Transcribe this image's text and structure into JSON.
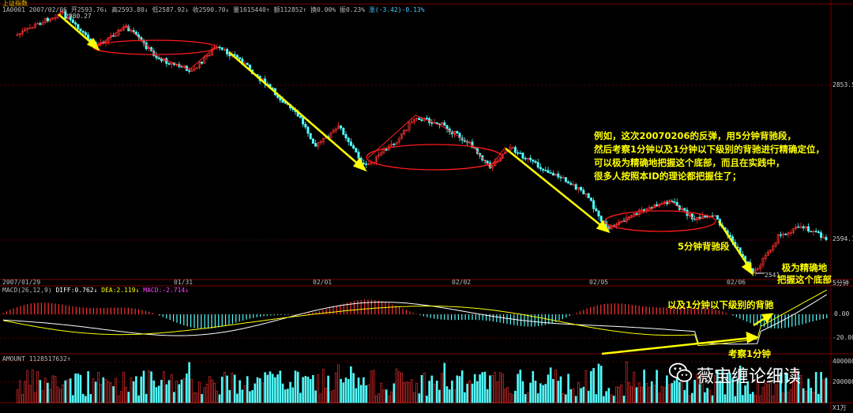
{
  "window_title": "上证指数",
  "main_header": {
    "code_date": "1A0001 2007/02/06",
    "open": "开2593.76↓",
    "high": "高2593.80↓",
    "low": "低2587.92↓",
    "close": "收2590.70↓",
    "volume": "量1615440↑",
    "amount": "额112852↑",
    "turnover": "换0.00%",
    "amplitude": "振0.23%",
    "change": "涨(-3.42)-0.13%"
  },
  "macd_header": {
    "name": "MACD(26,12,9)",
    "diff": "DIFF:0.762↓",
    "dea": "DEA:2.119↓",
    "macd": "MACD:-2.714↓"
  },
  "amount_header": {
    "label": "AMOUNT 1128517632↑"
  },
  "price_labels": {
    "high_label": "2980.27",
    "low_label": "2541",
    "right_top": "2853.5",
    "right_bottom": "2594.1"
  },
  "macd_axis": [
    "0.00",
    "-20.00"
  ],
  "amount_axis": [
    "400000",
    "200000"
  ],
  "date_axis": [
    "2007/01/29",
    "01/31",
    "02/01",
    "02/02",
    "02/05",
    "02/06"
  ],
  "period_label": "5分钟",
  "unit_label": "X1万",
  "annotations": {
    "main_text": [
      "例如，这次20070206的反弹，用5分钟背驰段，",
      "然后考察1分钟以及1分钟以下级别的背驰进行精确定位，",
      "可以极为精确地把握这个底部，而且在实践中，",
      "很多人按照本ID的理论都把握住了；"
    ],
    "segment_label": "5分钟背驰段",
    "bottom_label": [
      "极为精确地",
      "把握这个底部"
    ],
    "divergence_label": "以及1分钟以下级别的背驰",
    "examine_label": "考察1分钟"
  },
  "watermark": "薇宝缠论细读",
  "colors": {
    "up": "#ff3232",
    "down": "#54fcfc",
    "arrow": "#ffff00",
    "annotation": "#ffff00",
    "circle": "#ff0000",
    "diff": "#ffffff",
    "dea": "#ffff00"
  },
  "chart_data": {
    "type": "candlestick",
    "x": [
      "2007/01/29",
      "01/31",
      "02/01",
      "02/02",
      "02/05",
      "02/06"
    ],
    "price_points": [
      {
        "x": "2007/01/29",
        "value": 2980.27,
        "note": "high"
      },
      {
        "x": "02/06",
        "value": 2541,
        "note": "low"
      }
    ],
    "y_ticks": [
      2853.5,
      2594.1
    ],
    "close": 2590.7,
    "series": [
      {
        "name": "DIFF",
        "value": 0.762
      },
      {
        "name": "DEA",
        "value": 2.119
      },
      {
        "name": "MACD",
        "value": -2.714
      }
    ]
  }
}
